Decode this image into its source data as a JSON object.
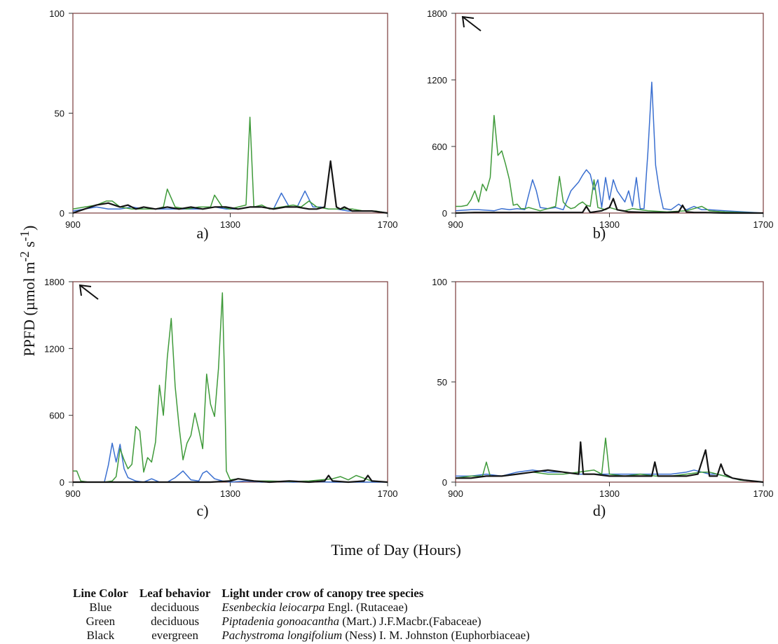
{
  "figure": {
    "ylabel_prefix": "PPFD (µmol m",
    "ylabel_sup1": "-2",
    "ylabel_mid": " s",
    "ylabel_sup2": "-1",
    "ylabel_suffix": ")",
    "xlabel": "Time of Day (Hours)"
  },
  "colors": {
    "Blue": "#3a6fd0",
    "Green": "#3f9a3a",
    "Black": "#141414"
  },
  "chart_data": [
    {
      "type": "line",
      "panel_label": "a)",
      "xlim": [
        900,
        1700
      ],
      "ylim": [
        0,
        100
      ],
      "xticks": [
        900,
        1300,
        1700
      ],
      "yticks": [
        0,
        50,
        100
      ],
      "arrow": false,
      "series": [
        {
          "color_name": "Blue",
          "x": [
            900,
            930,
            960,
            990,
            1020,
            1050,
            1080,
            1110,
            1140,
            1170,
            1200,
            1230,
            1260,
            1290,
            1320,
            1350,
            1380,
            1410,
            1430,
            1450,
            1470,
            1490,
            1510,
            1530,
            1550,
            1570,
            1600,
            1630,
            1660,
            1700
          ],
          "y": [
            1,
            2,
            3,
            2,
            2,
            3,
            2,
            2,
            2,
            2,
            2,
            2,
            3,
            2,
            2,
            3,
            3,
            2,
            10,
            3,
            3,
            11,
            3,
            3,
            2,
            2,
            1,
            1,
            1,
            0
          ]
        },
        {
          "color_name": "Green",
          "x": [
            900,
            930,
            960,
            985,
            1000,
            1020,
            1050,
            1080,
            1110,
            1130,
            1140,
            1160,
            1190,
            1220,
            1250,
            1260,
            1280,
            1300,
            1320,
            1340,
            1350,
            1360,
            1380,
            1400,
            1430,
            1460,
            1480,
            1500,
            1520,
            1550,
            1580,
            1610,
            1640,
            1670,
            1700
          ],
          "y": [
            2,
            3,
            4,
            6,
            6,
            3,
            2,
            2,
            2,
            3,
            12,
            3,
            2,
            3,
            3,
            9,
            3,
            2,
            3,
            4,
            48,
            3,
            4,
            2,
            3,
            4,
            3,
            6,
            3,
            2,
            2,
            2,
            1,
            1,
            0
          ]
        },
        {
          "color_name": "Black",
          "x": [
            900,
            930,
            960,
            990,
            1020,
            1040,
            1060,
            1080,
            1110,
            1140,
            1170,
            1200,
            1230,
            1260,
            1290,
            1320,
            1350,
            1380,
            1410,
            1440,
            1470,
            1500,
            1520,
            1540,
            1555,
            1570,
            1580,
            1590,
            1610,
            1630,
            1660,
            1700
          ],
          "y": [
            0,
            2,
            4,
            5,
            3,
            4,
            2,
            3,
            2,
            3,
            2,
            3,
            2,
            3,
            3,
            2,
            3,
            3,
            2,
            3,
            3,
            2,
            2,
            3,
            26,
            3,
            2,
            3,
            1,
            1,
            1,
            0
          ]
        }
      ]
    },
    {
      "type": "line",
      "panel_label": "b)",
      "xlim": [
        900,
        1700
      ],
      "ylim": [
        0,
        1800
      ],
      "xticks": [
        900,
        1300,
        1700
      ],
      "yticks": [
        0,
        600,
        1200,
        1800
      ],
      "arrow": true,
      "series": [
        {
          "color_name": "Blue",
          "x": [
            900,
            920,
            940,
            960,
            980,
            1000,
            1020,
            1040,
            1060,
            1080,
            1100,
            1110,
            1120,
            1140,
            1160,
            1180,
            1200,
            1210,
            1220,
            1230,
            1240,
            1250,
            1260,
            1270,
            1280,
            1290,
            1300,
            1310,
            1320,
            1330,
            1340,
            1350,
            1360,
            1370,
            1380,
            1390,
            1400,
            1410,
            1420,
            1430,
            1440,
            1460,
            1480,
            1500,
            1520,
            1540,
            1560,
            1600,
            1650,
            1700
          ],
          "y": [
            20,
            25,
            30,
            30,
            25,
            20,
            40,
            30,
            40,
            30,
            300,
            200,
            50,
            40,
            50,
            30,
            200,
            240,
            280,
            340,
            390,
            350,
            210,
            300,
            50,
            320,
            120,
            300,
            200,
            150,
            100,
            200,
            60,
            320,
            40,
            40,
            550,
            1180,
            430,
            200,
            40,
            30,
            80,
            30,
            60,
            30,
            30,
            20,
            10,
            0
          ]
        },
        {
          "color_name": "Green",
          "x": [
            900,
            915,
            930,
            940,
            950,
            960,
            970,
            980,
            990,
            1000,
            1010,
            1020,
            1030,
            1040,
            1050,
            1060,
            1070,
            1080,
            1090,
            1100,
            1120,
            1140,
            1150,
            1160,
            1170,
            1180,
            1190,
            1200,
            1210,
            1220,
            1230,
            1240,
            1250,
            1260,
            1270,
            1280,
            1290,
            1300,
            1310,
            1320,
            1340,
            1360,
            1380,
            1400,
            1450,
            1500,
            1520,
            1540,
            1560,
            1600,
            1650,
            1700
          ],
          "y": [
            60,
            60,
            70,
            120,
            200,
            100,
            260,
            200,
            320,
            880,
            520,
            560,
            440,
            300,
            70,
            80,
            40,
            40,
            50,
            40,
            20,
            40,
            50,
            60,
            330,
            100,
            60,
            40,
            50,
            80,
            100,
            70,
            60,
            300,
            50,
            40,
            30,
            50,
            40,
            30,
            20,
            40,
            30,
            20,
            10,
            20,
            40,
            60,
            20,
            10,
            5,
            0
          ]
        },
        {
          "color_name": "Black",
          "x": [
            900,
            950,
            1000,
            1050,
            1100,
            1150,
            1200,
            1230,
            1240,
            1250,
            1280,
            1300,
            1310,
            1320,
            1350,
            1400,
            1450,
            1480,
            1490,
            1500,
            1520,
            1550,
            1600,
            1700
          ],
          "y": [
            0,
            5,
            5,
            5,
            5,
            5,
            5,
            5,
            60,
            5,
            20,
            50,
            130,
            30,
            10,
            5,
            5,
            10,
            70,
            10,
            5,
            5,
            0,
            0
          ]
        }
      ]
    },
    {
      "type": "line",
      "panel_label": "c)",
      "xlim": [
        900,
        1700
      ],
      "ylim": [
        0,
        1800
      ],
      "xticks": [
        900,
        1300,
        1700
      ],
      "yticks": [
        0,
        600,
        1200,
        1800
      ],
      "arrow": true,
      "series": [
        {
          "color_name": "Blue",
          "x": [
            900,
            950,
            980,
            990,
            1000,
            1010,
            1020,
            1030,
            1040,
            1060,
            1080,
            1100,
            1120,
            1140,
            1160,
            1180,
            1200,
            1220,
            1230,
            1240,
            1260,
            1280,
            1300,
            1340,
            1380,
            1420,
            1460,
            1500,
            1560,
            1600,
            1650,
            1700
          ],
          "y": [
            0,
            0,
            0,
            150,
            350,
            180,
            340,
            120,
            40,
            10,
            0,
            30,
            0,
            0,
            40,
            100,
            20,
            10,
            80,
            100,
            30,
            10,
            0,
            10,
            0,
            5,
            0,
            5,
            0,
            0,
            0,
            0
          ]
        },
        {
          "color_name": "Green",
          "x": [
            900,
            910,
            920,
            940,
            960,
            980,
            1000,
            1010,
            1020,
            1030,
            1040,
            1050,
            1060,
            1070,
            1080,
            1090,
            1100,
            1110,
            1120,
            1130,
            1140,
            1150,
            1160,
            1170,
            1180,
            1190,
            1200,
            1210,
            1220,
            1230,
            1240,
            1250,
            1260,
            1270,
            1280,
            1285,
            1290,
            1300,
            1320,
            1360,
            1400,
            1450,
            1500,
            1560,
            1580,
            1600,
            1620,
            1660,
            1700
          ],
          "y": [
            100,
            100,
            10,
            0,
            0,
            0,
            10,
            50,
            300,
            200,
            120,
            160,
            500,
            460,
            90,
            220,
            180,
            360,
            870,
            600,
            1120,
            1470,
            860,
            500,
            200,
            350,
            420,
            620,
            470,
            300,
            970,
            700,
            590,
            1020,
            1700,
            1000,
            100,
            20,
            30,
            10,
            10,
            5,
            10,
            30,
            50,
            20,
            60,
            10,
            0
          ]
        },
        {
          "color_name": "Black",
          "x": [
            900,
            950,
            1000,
            1050,
            1100,
            1150,
            1200,
            1250,
            1300,
            1320,
            1340,
            1360,
            1400,
            1450,
            1500,
            1540,
            1550,
            1560,
            1600,
            1640,
            1650,
            1660,
            1700
          ],
          "y": [
            0,
            0,
            0,
            0,
            0,
            0,
            0,
            0,
            10,
            30,
            20,
            10,
            0,
            10,
            0,
            10,
            60,
            10,
            0,
            10,
            60,
            10,
            0
          ]
        }
      ]
    },
    {
      "type": "line",
      "panel_label": "d)",
      "xlim": [
        900,
        1700
      ],
      "ylim": [
        0,
        100
      ],
      "xticks": [
        900,
        1300,
        1700
      ],
      "yticks": [
        0,
        50,
        100
      ],
      "arrow": false,
      "series": [
        {
          "color_name": "Blue",
          "x": [
            900,
            940,
            980,
            1020,
            1060,
            1100,
            1140,
            1180,
            1220,
            1260,
            1300,
            1340,
            1380,
            1420,
            1460,
            1500,
            1520,
            1540,
            1560,
            1580,
            1600,
            1640,
            1700
          ],
          "y": [
            3,
            3,
            4,
            3,
            5,
            6,
            5,
            5,
            4,
            4,
            4,
            4,
            4,
            4,
            4,
            5,
            6,
            5,
            4,
            4,
            3,
            1,
            0
          ]
        },
        {
          "color_name": "Green",
          "x": [
            900,
            940,
            970,
            980,
            990,
            1020,
            1060,
            1100,
            1140,
            1180,
            1220,
            1260,
            1280,
            1290,
            1300,
            1340,
            1380,
            1420,
            1460,
            1500,
            1540,
            1560,
            1580,
            1600,
            1640,
            1700
          ],
          "y": [
            2,
            3,
            3,
            10,
            3,
            3,
            4,
            5,
            4,
            4,
            5,
            6,
            4,
            22,
            4,
            3,
            4,
            3,
            3,
            4,
            5,
            5,
            4,
            3,
            1,
            0
          ]
        },
        {
          "color_name": "Black",
          "x": [
            900,
            940,
            980,
            1020,
            1060,
            1100,
            1140,
            1180,
            1220,
            1225,
            1232,
            1260,
            1300,
            1340,
            1380,
            1410,
            1418,
            1426,
            1460,
            1500,
            1530,
            1550,
            1560,
            1580,
            1590,
            1600,
            1620,
            1650,
            1700
          ],
          "y": [
            2,
            2,
            3,
            3,
            4,
            5,
            6,
            5,
            4,
            20,
            4,
            4,
            3,
            3,
            3,
            3,
            10,
            3,
            3,
            3,
            4,
            16,
            3,
            3,
            9,
            4,
            2,
            1,
            0
          ]
        }
      ]
    }
  ],
  "legend": {
    "headers": [
      "Line Color",
      "Leaf behavior",
      "Light under crow of canopy tree species"
    ],
    "rows": [
      {
        "color": "Blue",
        "behavior": "deciduous",
        "species_italic": "Esenbeckia leiocarpa",
        "species_rest": " Engl. (Rutaceae)"
      },
      {
        "color": "Green",
        "behavior": "deciduous",
        "species_italic": "Piptadenia gonoacantha",
        "species_rest": " (Mart.) J.F.Macbr.(Fabaceae)"
      },
      {
        "color": "Black",
        "behavior": "evergreen",
        "species_italic": "Pachystroma longifolium",
        "species_rest": " (Ness) I. M. Johnston (Euphorbiaceae)"
      }
    ]
  }
}
